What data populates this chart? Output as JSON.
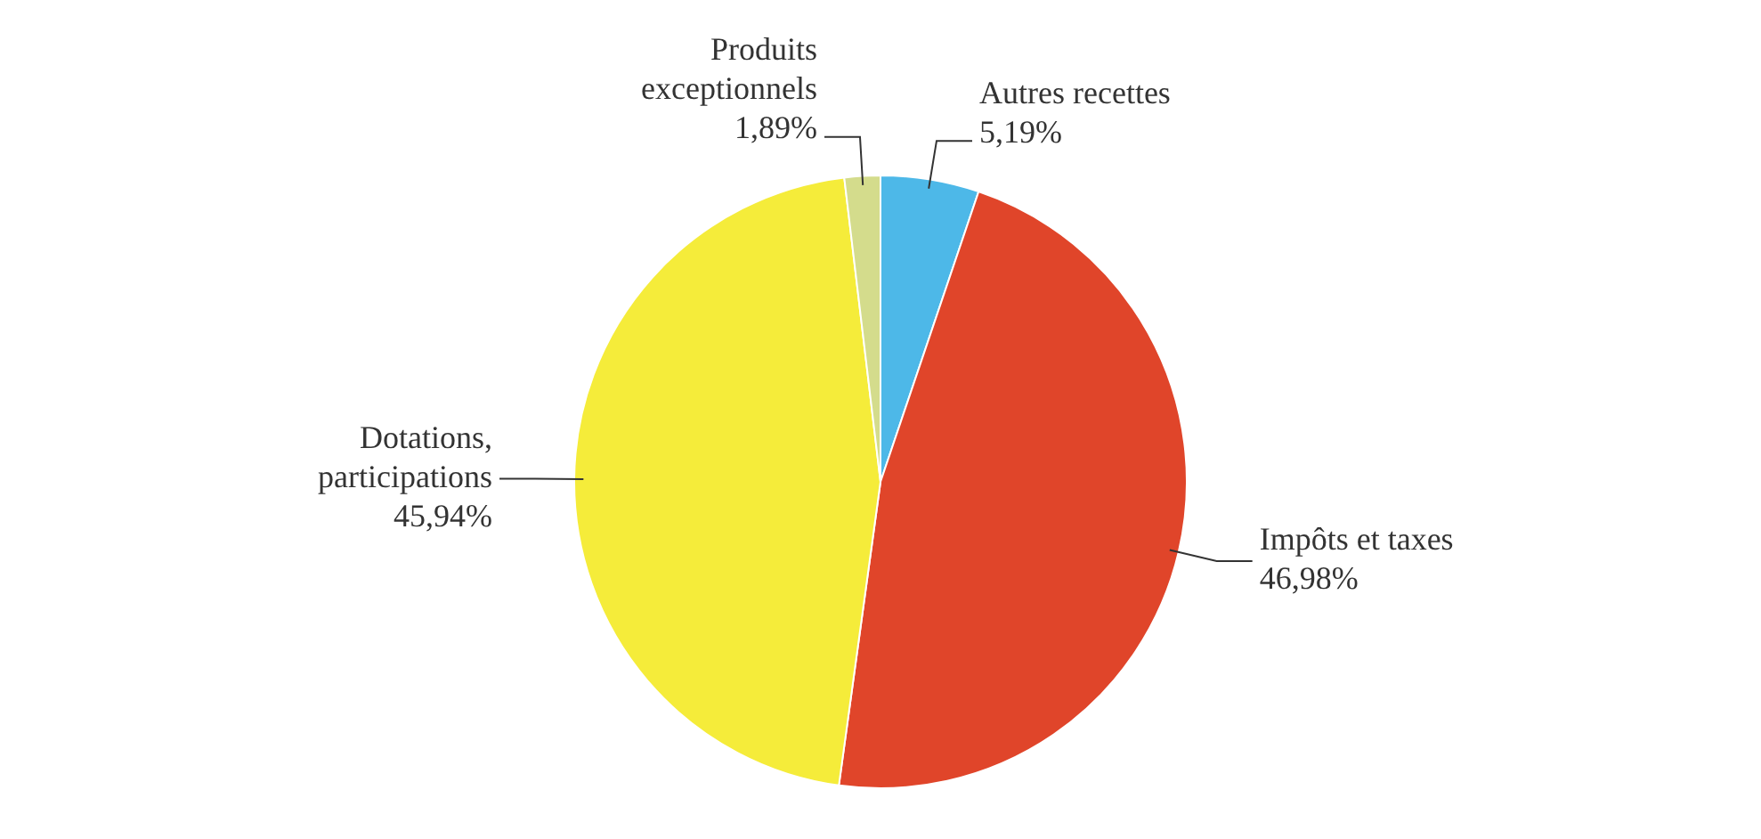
{
  "chart_data": {
    "type": "pie",
    "categories": [
      "Autres recettes",
      "Impôts et taxes",
      "Dotations, participations",
      "Produits exceptionnels"
    ],
    "values": [
      5.19,
      46.98,
      45.94,
      1.89
    ],
    "value_labels": [
      "5,19%",
      "46,98%",
      "45,94%",
      "1,89%"
    ],
    "colors": [
      "#4db8e8",
      "#e0452a",
      "#f5ec3a",
      "#d4dc8c"
    ],
    "legend": false
  }
}
